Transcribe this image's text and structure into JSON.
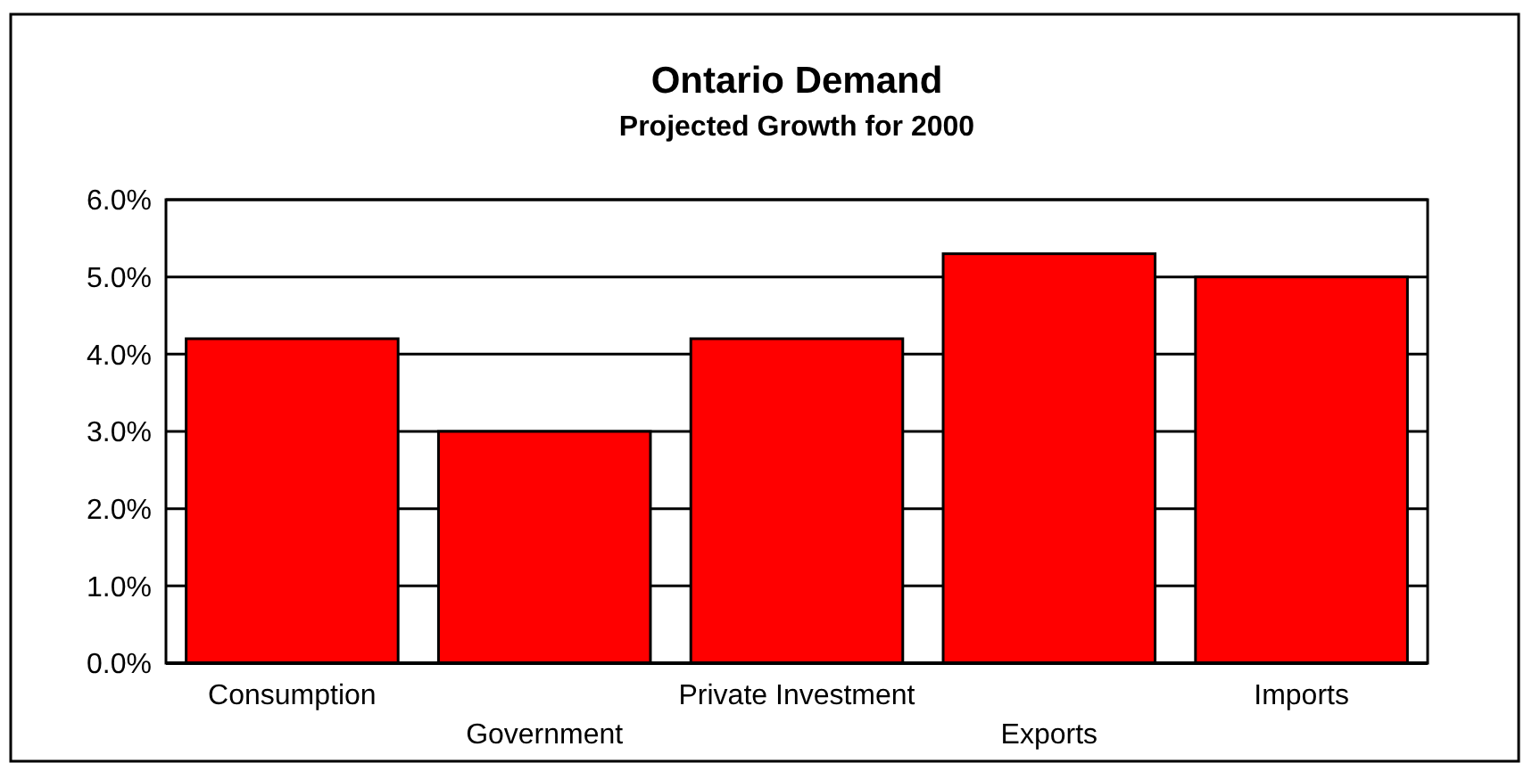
{
  "chart_data": {
    "type": "bar",
    "title": "Ontario Demand",
    "subtitle": "Projected Growth for 2000",
    "categories": [
      "Consumption",
      "Government",
      "Private Investment",
      "Exports",
      "Imports"
    ],
    "values": [
      4.2,
      3.0,
      4.2,
      5.3,
      5.0
    ],
    "color": "#ff0000",
    "ylim": [
      0,
      6
    ],
    "yticks": [
      {
        "value": 0,
        "label": "0.0%"
      },
      {
        "value": 1,
        "label": "1.0%"
      },
      {
        "value": 2,
        "label": "2.0%"
      },
      {
        "value": 3,
        "label": "3.0%"
      },
      {
        "value": 4,
        "label": "4.0%"
      },
      {
        "value": 5,
        "label": "5.0%"
      },
      {
        "value": 6,
        "label": "6.0%"
      }
    ],
    "grid": "y"
  }
}
